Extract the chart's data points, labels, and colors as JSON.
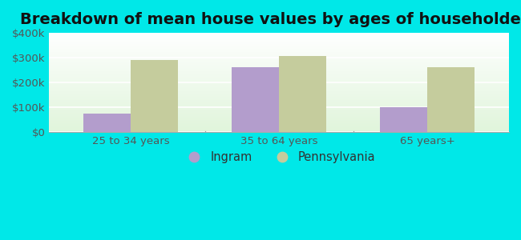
{
  "title": "Breakdown of mean house values by ages of householders",
  "categories": [
    "25 to 34 years",
    "35 to 64 years",
    "65 years+"
  ],
  "ingram_values": [
    75000,
    262000,
    100000
  ],
  "pennsylvania_values": [
    291000,
    308000,
    262000
  ],
  "ingram_color": "#b39dcc",
  "pennsylvania_color": "#c5cc9d",
  "background_color": "#00e8e8",
  "plot_bg_top": "#e8f5e8",
  "plot_bg_bottom": "#f5fff5",
  "ylim": [
    0,
    400000
  ],
  "yticks": [
    0,
    100000,
    200000,
    300000,
    400000
  ],
  "ytick_labels": [
    "$0",
    "$100k",
    "$200k",
    "$300k",
    "$400k"
  ],
  "legend_labels": [
    "Ingram",
    "Pennsylvania"
  ],
  "bar_width": 0.32,
  "title_fontsize": 14,
  "tick_fontsize": 9.5,
  "legend_fontsize": 10.5,
  "grid_color": "#d0e8d0"
}
